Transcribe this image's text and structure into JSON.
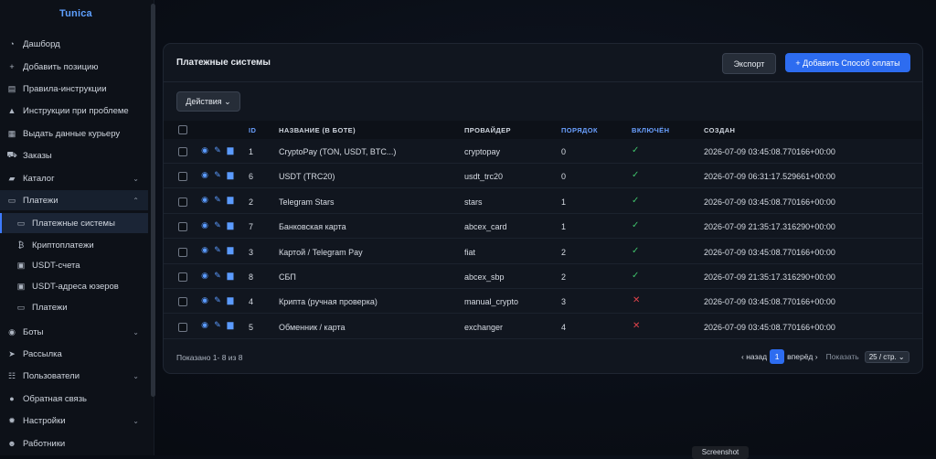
{
  "brand": "Tunica",
  "sidebar": {
    "items": [
      {
        "label": "Дашборд",
        "icon": "gauge-icon",
        "glyph": "◔"
      },
      {
        "label": "Добавить позицию",
        "icon": "plus-icon",
        "glyph": "+"
      },
      {
        "label": "Правила-инструкции",
        "icon": "book-icon",
        "glyph": "▤"
      },
      {
        "label": "Инструкции при проблеме",
        "icon": "warning-icon",
        "glyph": "▲"
      },
      {
        "label": "Выдать данные курьеру",
        "icon": "id-card-icon",
        "glyph": "▦"
      },
      {
        "label": "Заказы",
        "icon": "cart-icon",
        "glyph": "⛟"
      },
      {
        "label": "Каталог",
        "icon": "folder-icon",
        "glyph": "▰"
      },
      {
        "label": "Платежи",
        "icon": "credit-card-icon",
        "glyph": "▭"
      },
      {
        "label": "Платежные системы",
        "icon": "card-icon",
        "glyph": "▭"
      },
      {
        "label": "Криптоплатежи",
        "icon": "bitcoin-icon",
        "glyph": "₿"
      },
      {
        "label": "USDT-счета",
        "icon": "wallet-icon",
        "glyph": "▣"
      },
      {
        "label": "USDT-адреса юзеров",
        "icon": "wallet-icon",
        "glyph": "▣"
      },
      {
        "label": "Платежи",
        "icon": "card-icon",
        "glyph": "▭"
      },
      {
        "label": "Боты",
        "icon": "robot-icon",
        "glyph": "◉"
      },
      {
        "label": "Рассылка",
        "icon": "send-icon",
        "glyph": "➤"
      },
      {
        "label": "Пользователи",
        "icon": "users-icon",
        "glyph": "☷"
      },
      {
        "label": "Обратная связь",
        "icon": "chat-icon",
        "glyph": "●"
      },
      {
        "label": "Настройки",
        "icon": "gear-icon",
        "glyph": "✹"
      },
      {
        "label": "Работники",
        "icon": "workers-icon",
        "glyph": "☻"
      }
    ]
  },
  "header": {
    "title": "Платежные системы",
    "export_label": "Экспорт",
    "add_label": "+ Добавить Способ оплаты"
  },
  "toolbar": {
    "actions_label": "Действия ⌄"
  },
  "table": {
    "columns": [
      "ID",
      "НАЗВАНИЕ (В БОТЕ)",
      "ПРОВАЙДЕР",
      "ПОРЯДОК",
      "ВКЛЮЧЁН",
      "СОЗДАН"
    ],
    "rows": [
      {
        "id": "1",
        "name": "CryptoPay (TON, USDT, BTC...)",
        "provider": "cryptopay",
        "order": "0",
        "enabled": true,
        "created": "2026-07-09 03:45:08.770166+00:00"
      },
      {
        "id": "6",
        "name": "USDT (TRC20)",
        "provider": "usdt_trc20",
        "order": "0",
        "enabled": true,
        "created": "2026-07-09 06:31:17.529661+00:00"
      },
      {
        "id": "2",
        "name": "Telegram Stars",
        "provider": "stars",
        "order": "1",
        "enabled": true,
        "created": "2026-07-09 03:45:08.770166+00:00"
      },
      {
        "id": "7",
        "name": "Банковская карта",
        "provider": "abcex_card",
        "order": "1",
        "enabled": true,
        "created": "2026-07-09 21:35:17.316290+00:00"
      },
      {
        "id": "3",
        "name": "Картой / Telegram Pay",
        "provider": "fiat",
        "order": "2",
        "enabled": true,
        "created": "2026-07-09 03:45:08.770166+00:00"
      },
      {
        "id": "8",
        "name": "СБП",
        "provider": "abcex_sbp",
        "order": "2",
        "enabled": true,
        "created": "2026-07-09 21:35:17.316290+00:00"
      },
      {
        "id": "4",
        "name": "Крипта (ручная проверка)",
        "provider": "manual_crypto",
        "order": "3",
        "enabled": false,
        "created": "2026-07-09 03:45:08.770166+00:00"
      },
      {
        "id": "5",
        "name": "Обменник / карта",
        "provider": "exchanger",
        "order": "4",
        "enabled": false,
        "created": "2026-07-09 03:45:08.770166+00:00"
      }
    ]
  },
  "footer": {
    "info": "Показано 1- 8 из 8",
    "prev": "назад",
    "page": "1",
    "next": "вперёд",
    "show_label": "Показать",
    "per_page": "25 / стр. ⌄"
  },
  "tooltip": "Screenshot",
  "colors": {
    "accent": "#2d6cf0",
    "enabled": "#3fbf6a",
    "disabled": "#e0434b"
  }
}
